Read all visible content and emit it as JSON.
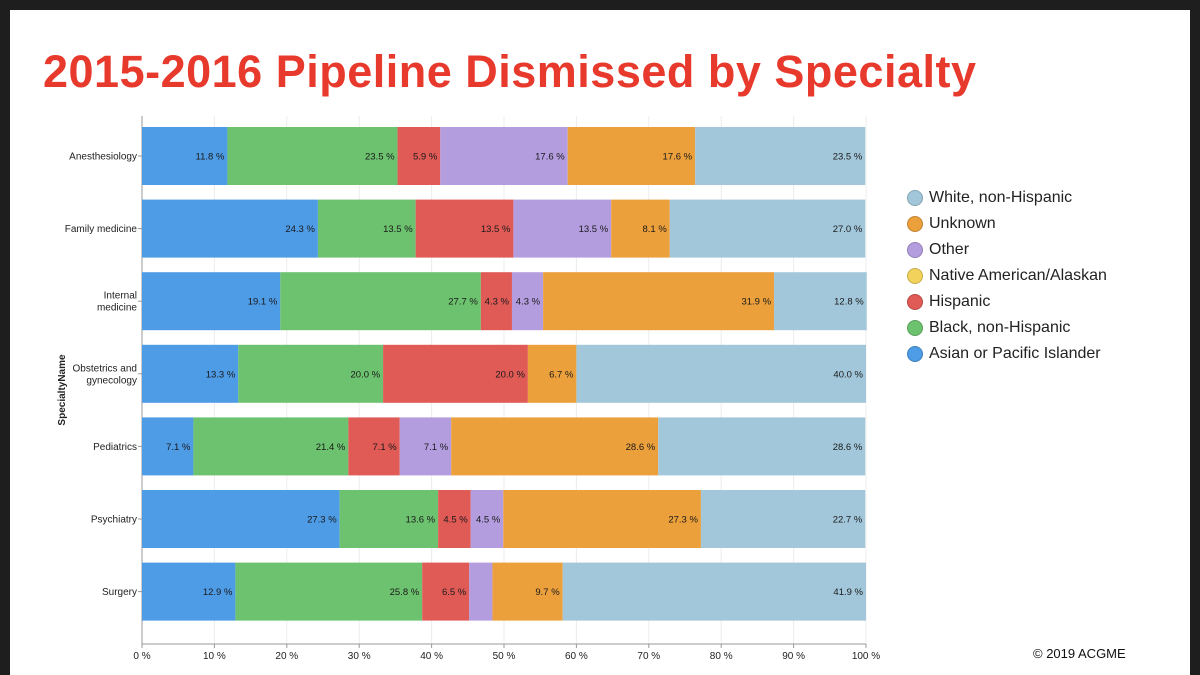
{
  "title": "2015-2016 Pipeline Dismissed by Specialty",
  "copyright": "© 2019  ACGME",
  "chart_data": {
    "type": "bar",
    "orientation": "horizontal",
    "stacked": true,
    "ylabel": "SpecialtyName",
    "xlim": [
      0,
      100
    ],
    "x_ticks": [
      "0 %",
      "10 %",
      "20 %",
      "30 %",
      "40 %",
      "50 %",
      "60 %",
      "70 %",
      "80 %",
      "90 %",
      "100 %"
    ],
    "categories": [
      "Anesthesiology",
      "Family medicine",
      "Internal medicine",
      "Obstetrics and gynecology",
      "Pediatrics",
      "Psychiatry",
      "Surgery"
    ],
    "category_lines": [
      [
        "Anesthesiology"
      ],
      [
        "Family medicine"
      ],
      [
        "Internal",
        "medicine"
      ],
      [
        "Obstetrics and",
        "gynecology"
      ],
      [
        "Pediatrics"
      ],
      [
        "Psychiatry"
      ],
      [
        "Surgery"
      ]
    ],
    "series": [
      {
        "name": "Asian or Pacific Islander",
        "color": "#4e9be6",
        "values": [
          11.8,
          24.3,
          19.1,
          13.3,
          7.1,
          27.3,
          12.9
        ],
        "labels": [
          "11.8 %",
          "24.3 %",
          "19.1 %",
          "13.3 %",
          "7.1 %",
          "27.3 %",
          "12.9 %"
        ]
      },
      {
        "name": "Black, non-Hispanic",
        "color": "#6cc26e",
        "values": [
          23.5,
          13.5,
          27.7,
          20.0,
          21.4,
          13.6,
          25.8
        ],
        "labels": [
          "23.5 %",
          "13.5 %",
          "27.7 %",
          "20.0 %",
          "21.4 %",
          "13.6 %",
          "25.8 %"
        ]
      },
      {
        "name": "Hispanic",
        "color": "#e05a56",
        "values": [
          5.9,
          13.5,
          4.3,
          20.0,
          7.1,
          4.5,
          6.5
        ],
        "labels": [
          "5.9 %",
          "13.5 %",
          "4.3 %",
          "20.0 %",
          "7.1 %",
          "4.5 %",
          "6.5 %"
        ]
      },
      {
        "name": "Native American/Alaskan",
        "color": "#f2d25a",
        "values": [
          0,
          0,
          0,
          0,
          0,
          0,
          0
        ],
        "labels": [
          "",
          "",
          "",
          "",
          "",
          "",
          ""
        ]
      },
      {
        "name": "Other",
        "color": "#b39ddf",
        "values": [
          17.6,
          13.5,
          4.3,
          0,
          7.1,
          4.5,
          3.2
        ],
        "labels": [
          "17.6 %",
          "13.5 %",
          "4.3 %",
          "",
          "7.1 %",
          "4.5 %",
          ""
        ]
      },
      {
        "name": "Unknown",
        "color": "#eca03b",
        "values": [
          17.6,
          8.1,
          31.9,
          6.7,
          28.6,
          27.3,
          9.7
        ],
        "labels": [
          "17.6 %",
          "8.1 %",
          "31.9 %",
          "6.7 %",
          "28.6 %",
          "27.3 %",
          "9.7 %"
        ]
      },
      {
        "name": "White, non-Hispanic",
        "color": "#a2c7da",
        "values": [
          23.5,
          27.0,
          12.8,
          40.0,
          28.6,
          22.7,
          41.9
        ],
        "labels": [
          "23.5 %",
          "27.0 %",
          "12.8 %",
          "40.0 %",
          "28.6 %",
          "22.7 %",
          "41.9 %"
        ]
      }
    ],
    "legend": {
      "position": "right",
      "order": [
        "White, non-Hispanic",
        "Unknown",
        "Other",
        "Native American/Alaskan",
        "Hispanic",
        "Black, non-Hispanic",
        "Asian or Pacific Islander"
      ]
    }
  }
}
